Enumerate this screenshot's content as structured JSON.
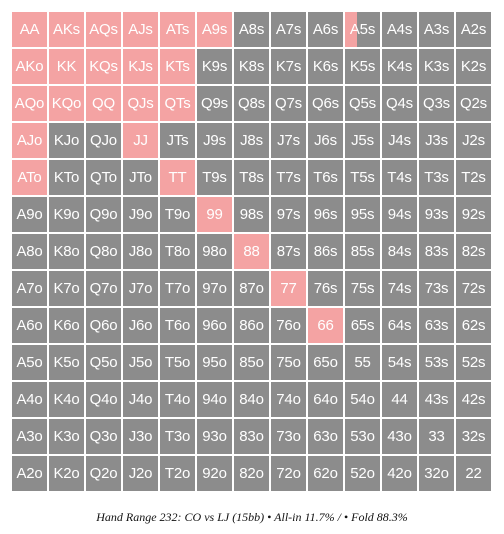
{
  "colors": {
    "allin": "#f4a3a3",
    "fold": "#8c8c8c",
    "text": "#ffffff"
  },
  "grid": [
    [
      "AA",
      "AKs",
      "AQs",
      "AJs",
      "ATs",
      "A9s",
      "A8s",
      "A7s",
      "A6s",
      "A5s",
      "A4s",
      "A3s",
      "A2s"
    ],
    [
      "AKo",
      "KK",
      "KQs",
      "KJs",
      "KTs",
      "K9s",
      "K8s",
      "K7s",
      "K6s",
      "K5s",
      "K4s",
      "K3s",
      "K2s"
    ],
    [
      "AQo",
      "KQo",
      "QQ",
      "QJs",
      "QTs",
      "Q9s",
      "Q8s",
      "Q7s",
      "Q6s",
      "Q5s",
      "Q4s",
      "Q3s",
      "Q2s"
    ],
    [
      "AJo",
      "KJo",
      "QJo",
      "JJ",
      "JTs",
      "J9s",
      "J8s",
      "J7s",
      "J6s",
      "J5s",
      "J4s",
      "J3s",
      "J2s"
    ],
    [
      "ATo",
      "KTo",
      "QTo",
      "JTo",
      "TT",
      "T9s",
      "T8s",
      "T7s",
      "T6s",
      "T5s",
      "T4s",
      "T3s",
      "T2s"
    ],
    [
      "A9o",
      "K9o",
      "Q9o",
      "J9o",
      "T9o",
      "99",
      "98s",
      "97s",
      "96s",
      "95s",
      "94s",
      "93s",
      "92s"
    ],
    [
      "A8o",
      "K8o",
      "Q8o",
      "J8o",
      "T8o",
      "98o",
      "88",
      "87s",
      "86s",
      "85s",
      "84s",
      "83s",
      "82s"
    ],
    [
      "A7o",
      "K7o",
      "Q7o",
      "J7o",
      "T7o",
      "97o",
      "87o",
      "77",
      "76s",
      "75s",
      "74s",
      "73s",
      "72s"
    ],
    [
      "A6o",
      "K6o",
      "Q6o",
      "J6o",
      "T6o",
      "96o",
      "86o",
      "76o",
      "66",
      "65s",
      "64s",
      "63s",
      "62s"
    ],
    [
      "A5o",
      "K5o",
      "Q5o",
      "J5o",
      "T5o",
      "95o",
      "85o",
      "75o",
      "65o",
      "55",
      "54s",
      "53s",
      "52s"
    ],
    [
      "A4o",
      "K4o",
      "Q4o",
      "J4o",
      "T4o",
      "94o",
      "84o",
      "74o",
      "64o",
      "54o",
      "44",
      "43s",
      "42s"
    ],
    [
      "A3o",
      "K3o",
      "Q3o",
      "J3o",
      "T3o",
      "93o",
      "83o",
      "73o",
      "63o",
      "53o",
      "43o",
      "33",
      "32s"
    ],
    [
      "A2o",
      "K2o",
      "Q2o",
      "J2o",
      "T2o",
      "92o",
      "82o",
      "72o",
      "62o",
      "52o",
      "42o",
      "32o",
      "22"
    ]
  ],
  "allin_fraction": {
    "AA": 1,
    "AKs": 1,
    "AQs": 1,
    "AJs": 1,
    "ATs": 1,
    "A9s": 1,
    "A5s": 0.35,
    "AKo": 1,
    "KK": 1,
    "KQs": 1,
    "KJs": 1,
    "KTs": 1,
    "AQo": 1,
    "KQo": 1,
    "QQ": 1,
    "QJs": 1,
    "QTs": 1,
    "AJo": 1,
    "JJ": 1,
    "ATo": 1,
    "TT": 1,
    "99": 1,
    "88": 1,
    "77": 1,
    "66": 1
  },
  "caption": "Hand Range 232: CO vs LJ (15bb) • All-in 11.7% / • Fold 88.3%"
}
